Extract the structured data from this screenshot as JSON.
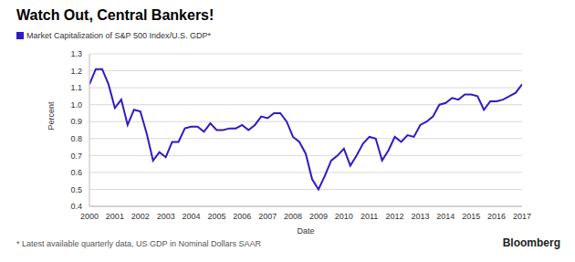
{
  "chart_data": {
    "type": "line",
    "title": "Watch Out, Central Bankers!",
    "x_label": "Date",
    "y_label": "Percent",
    "footnote": "* Latest available quarterly data, US GDP in Nominal Dollars SAAR",
    "source": "Bloomberg",
    "legend": "top-left",
    "grid": true,
    "x": [
      2000,
      2000.25,
      2000.5,
      2000.75,
      2001,
      2001.25,
      2001.5,
      2001.75,
      2002,
      2002.25,
      2002.5,
      2002.75,
      2003,
      2003.25,
      2003.5,
      2003.75,
      2004,
      2004.25,
      2004.5,
      2004.75,
      2005,
      2005.25,
      2005.5,
      2005.75,
      2006,
      2006.25,
      2006.5,
      2006.75,
      2007,
      2007.25,
      2007.5,
      2007.75,
      2008,
      2008.25,
      2008.5,
      2008.75,
      2009,
      2009.25,
      2009.5,
      2009.75,
      2010,
      2010.25,
      2010.5,
      2010.75,
      2011,
      2011.25,
      2011.5,
      2011.75,
      2012,
      2012.25,
      2012.5,
      2012.75,
      2013,
      2013.25,
      2013.5,
      2013.75,
      2014,
      2014.25,
      2014.5,
      2014.75,
      2015,
      2015.25,
      2015.5,
      2015.75,
      2016,
      2016.25,
      2016.5,
      2016.75,
      2017
    ],
    "series": [
      {
        "name": "Market Capitalization of S&P 500 Index/U.S. GDP*",
        "color": "#2e1bc6",
        "values": [
          1.12,
          1.21,
          1.21,
          1.12,
          0.98,
          1.03,
          0.88,
          0.97,
          0.96,
          0.83,
          0.67,
          0.72,
          0.69,
          0.78,
          0.78,
          0.86,
          0.87,
          0.87,
          0.84,
          0.89,
          0.85,
          0.85,
          0.86,
          0.86,
          0.88,
          0.85,
          0.88,
          0.93,
          0.92,
          0.95,
          0.95,
          0.9,
          0.81,
          0.78,
          0.71,
          0.56,
          0.5,
          0.58,
          0.67,
          0.7,
          0.74,
          0.64,
          0.7,
          0.77,
          0.81,
          0.8,
          0.67,
          0.73,
          0.81,
          0.78,
          0.82,
          0.81,
          0.88,
          0.9,
          0.93,
          1.0,
          1.01,
          1.04,
          1.03,
          1.06,
          1.06,
          1.05,
          0.97,
          1.02,
          1.02,
          1.03,
          1.05,
          1.07,
          1.12
        ]
      }
    ],
    "xlim": [
      2000,
      2017
    ],
    "xticks": [
      2000,
      2001,
      2002,
      2003,
      2004,
      2005,
      2006,
      2007,
      2008,
      2009,
      2010,
      2011,
      2012,
      2013,
      2014,
      2015,
      2016,
      2017
    ],
    "ylim": [
      0.4,
      1.3
    ],
    "yticks": [
      0.4,
      0.5,
      0.6,
      0.7,
      0.8,
      0.9,
      {
        "value": 1,
        "label": "1.0"
      },
      1.1,
      1.2,
      1.3
    ]
  }
}
